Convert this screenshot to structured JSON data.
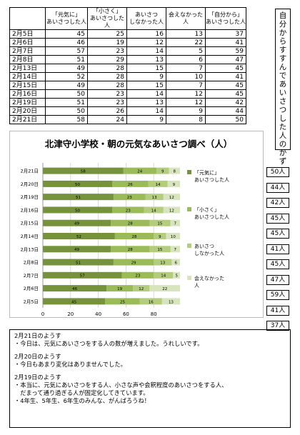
{
  "table": {
    "headers": [
      "",
      "「元気に」\nあいさつした人",
      "「小さく」\nあいさつした人",
      "あいさつ\nしなかった人",
      "会えなかった人",
      "「自分から」\nあいさつした人"
    ],
    "rows": [
      [
        "2月5日",
        "45",
        "25",
        "16",
        "13",
        "37"
      ],
      [
        "2月6日",
        "46",
        "19",
        "12",
        "22",
        "41"
      ],
      [
        "2月7日",
        "57",
        "23",
        "14",
        "5",
        "59"
      ],
      [
        "2月8日",
        "51",
        "29",
        "13",
        "6",
        "47"
      ],
      [
        "2月13日",
        "49",
        "28",
        "15",
        "7",
        "45"
      ],
      [
        "2月14日",
        "52",
        "28",
        "9",
        "10",
        "41"
      ],
      [
        "2月15日",
        "49",
        "28",
        "15",
        "7",
        "45"
      ],
      [
        "2月16日",
        "50",
        "23",
        "14",
        "12",
        "45"
      ],
      [
        "2月19日",
        "51",
        "23",
        "13",
        "12",
        "42"
      ],
      [
        "2月20日",
        "50",
        "26",
        "14",
        "9",
        "44"
      ],
      [
        "2月21日",
        "58",
        "24",
        "9",
        "8",
        "50"
      ]
    ]
  },
  "side_title": "自分からすすんであいさつした人のかず",
  "chart_data": {
    "type": "bar",
    "orientation": "horizontal",
    "stacked": true,
    "title": "北津守小学校・朝の元気なあいさつ調べ（人）",
    "categories": [
      "2月21日",
      "2月20日",
      "2月19日",
      "2月16日",
      "2月15日",
      "2月14日",
      "2月13日",
      "2月8日",
      "2月7日",
      "2月6日",
      "2月5日"
    ],
    "series": [
      {
        "name": "「元気に」あいさつした人",
        "color": "#76923c",
        "values": [
          58,
          50,
          51,
          50,
          49,
          52,
          49,
          51,
          57,
          46,
          45
        ]
      },
      {
        "name": "「小さく」あいさつした人",
        "color": "#9bbb59",
        "values": [
          24,
          26,
          23,
          23,
          28,
          28,
          28,
          29,
          23,
          19,
          25
        ]
      },
      {
        "name": "あいさつしなかった人",
        "color": "#b3cc7e",
        "values": [
          9,
          14,
          13,
          14,
          15,
          9,
          15,
          13,
          14,
          12,
          16
        ]
      },
      {
        "name": "会えなかった人",
        "color": "#d7e4bd",
        "values": [
          8,
          9,
          12,
          12,
          7,
          10,
          7,
          6,
          5,
          22,
          13
        ]
      }
    ],
    "x_ticks": [
      "0",
      "20",
      "40",
      "60",
      "80"
    ],
    "xlim": [
      0,
      100
    ],
    "legend_position": "right",
    "grid": true
  },
  "totals": [
    "50人",
    "44人",
    "42人",
    "45人",
    "45人",
    "41人",
    "45人",
    "47人",
    "59人",
    "41人",
    "37人"
  ],
  "notes": [
    {
      "heading": "2月21日のようす",
      "lines": [
        "・今日は、元気にあいさつをする人の数が増えました。うれしいです。"
      ]
    },
    {
      "heading": "2月20日のようす",
      "lines": [
        "・今日もあまり変化はありませんでした。"
      ]
    },
    {
      "heading": "2月19日のようす",
      "lines": [
        "・本当に、元気にあいさつをする人、小さな声や会釈程度のあいさつをする人、",
        "　だまって通り過ぎる人が固定化してきています。",
        "・4年生、5年生、6年生のみんな、がんばろうね！"
      ]
    }
  ]
}
